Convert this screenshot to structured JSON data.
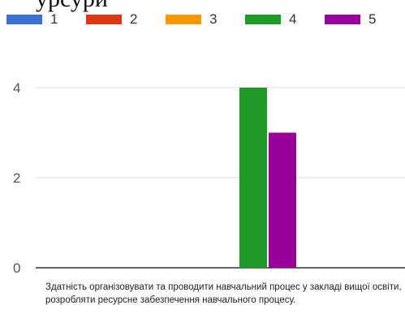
{
  "top_text": "урсури",
  "colors": {
    "series": [
      "#3b6fd6",
      "#dc3912",
      "#ff9900",
      "#1f9a26",
      "#990099"
    ],
    "axis": "#333333",
    "grid": "#dddddd"
  },
  "chart_data": {
    "type": "bar",
    "categories": [
      "Здатність організовувати та проводити навчальний процес у закладі вищої освіти, розробляти ресурсне забезпечення навчального процесу."
    ],
    "series": [
      {
        "name": "1",
        "values": [
          0
        ]
      },
      {
        "name": "2",
        "values": [
          0
        ]
      },
      {
        "name": "3",
        "values": [
          0
        ]
      },
      {
        "name": "4",
        "values": [
          4
        ]
      },
      {
        "name": "5",
        "values": [
          3
        ]
      }
    ],
    "yticks": [
      "0",
      "2",
      "4"
    ],
    "ylim": [
      0,
      4
    ],
    "grid": true,
    "legend_position": "top"
  }
}
